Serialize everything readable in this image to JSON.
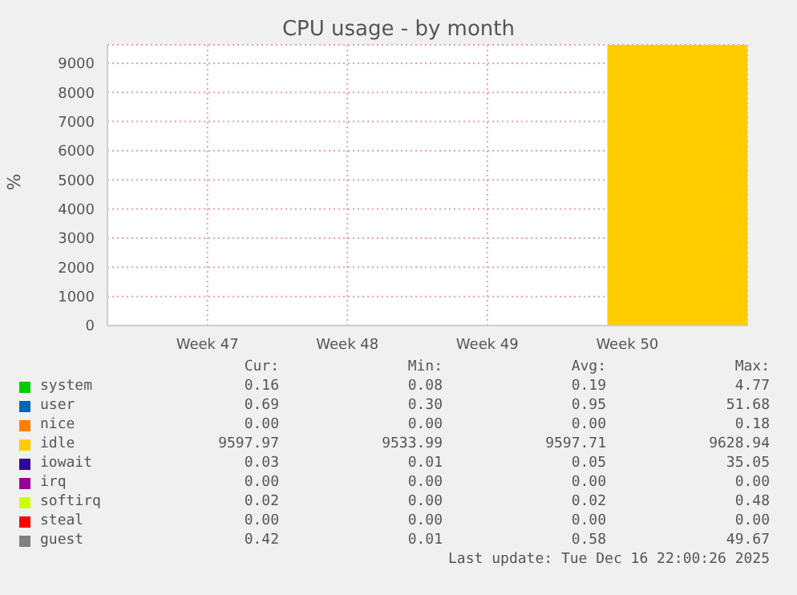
{
  "chart_data": {
    "type": "area",
    "title": "CPU usage - by month",
    "ylabel": "%",
    "categories": [
      null,
      null,
      null,
      null,
      null,
      "Week 47",
      null,
      null,
      null,
      null,
      null,
      null,
      "Week 48",
      null,
      null,
      null,
      null,
      null,
      null,
      "Week 49",
      null,
      null,
      null,
      null,
      null,
      null,
      "Week 50",
      null,
      null,
      null,
      null,
      null,
      null
    ],
    "ylim": [
      0,
      9630
    ],
    "yticks": [
      0,
      1000,
      2000,
      3000,
      4000,
      5000,
      6000,
      7000,
      8000,
      9000
    ],
    "grid": true,
    "legend": "bottom",
    "series": [
      {
        "name": "system",
        "color": "#00cc00",
        "values": [
          null,
          null,
          null,
          null,
          null,
          null,
          null,
          null,
          null,
          null,
          null,
          null,
          null,
          null,
          null,
          null,
          null,
          null,
          null,
          null,
          null,
          null,
          null,
          null,
          null,
          null,
          null,
          null,
          null,
          null,
          null,
          null,
          null
        ]
      },
      {
        "name": "user",
        "color": "#0066b3",
        "values": [
          null,
          null,
          null,
          null,
          null,
          null,
          null,
          null,
          null,
          null,
          null,
          null,
          null,
          null,
          null,
          null,
          null,
          null,
          null,
          null,
          null,
          null,
          null,
          null,
          null,
          null,
          null,
          null,
          null,
          null,
          null,
          null,
          null
        ]
      },
      {
        "name": "nice",
        "color": "#ff8000",
        "values": [
          null,
          null,
          null,
          null,
          null,
          null,
          null,
          null,
          null,
          null,
          null,
          null,
          null,
          null,
          null,
          null,
          null,
          null,
          null,
          null,
          null,
          null,
          null,
          null,
          null,
          null,
          null,
          null,
          null,
          null,
          null,
          null,
          null
        ]
      },
      {
        "name": "idle",
        "color": "#ffcc00",
        "values": [
          null,
          null,
          null,
          null,
          null,
          null,
          null,
          null,
          null,
          null,
          null,
          null,
          null,
          null,
          null,
          null,
          null,
          null,
          null,
          null,
          null,
          null,
          null,
          null,
          null,
          9600,
          9600,
          9600,
          9600,
          9600,
          9600,
          9600,
          9600
        ]
      },
      {
        "name": "iowait",
        "color": "#330099",
        "values": [
          null,
          null,
          null,
          null,
          null,
          null,
          null,
          null,
          null,
          null,
          null,
          null,
          null,
          null,
          null,
          null,
          null,
          null,
          null,
          null,
          null,
          null,
          null,
          null,
          null,
          null,
          null,
          null,
          null,
          null,
          null,
          null,
          null
        ]
      },
      {
        "name": "irq",
        "color": "#990099",
        "values": [
          null,
          null,
          null,
          null,
          null,
          null,
          null,
          null,
          null,
          null,
          null,
          null,
          null,
          null,
          null,
          null,
          null,
          null,
          null,
          null,
          null,
          null,
          null,
          null,
          null,
          null,
          null,
          null,
          null,
          null,
          null,
          null,
          null
        ]
      },
      {
        "name": "softirq",
        "color": "#ccff00",
        "values": [
          null,
          null,
          null,
          null,
          null,
          null,
          null,
          null,
          null,
          null,
          null,
          null,
          null,
          null,
          null,
          null,
          null,
          null,
          null,
          null,
          null,
          null,
          null,
          null,
          null,
          null,
          null,
          null,
          null,
          null,
          null,
          null,
          null
        ]
      },
      {
        "name": "steal",
        "color": "#ff0000",
        "values": [
          null,
          null,
          null,
          null,
          null,
          null,
          null,
          null,
          null,
          null,
          null,
          null,
          null,
          null,
          null,
          null,
          null,
          null,
          null,
          null,
          null,
          null,
          null,
          null,
          null,
          null,
          null,
          null,
          null,
          null,
          null,
          null,
          null
        ]
      },
      {
        "name": "guest",
        "color": "#808080",
        "values": [
          null,
          null,
          null,
          null,
          null,
          null,
          null,
          null,
          null,
          null,
          null,
          null,
          null,
          null,
          null,
          null,
          null,
          null,
          null,
          null,
          null,
          null,
          null,
          null,
          null,
          null,
          null,
          null,
          null,
          null,
          null,
          null,
          null
        ]
      }
    ],
    "annotations": [
      "Cur:",
      "Min:",
      "Avg:",
      "Max:",
      "0.16",
      "0.08",
      "0.19",
      "4.77",
      "0.69",
      "0.30",
      "0.95",
      "51.68",
      "0.00",
      "0.00",
      "0.00",
      "0.18",
      "9597.97",
      "9533.99",
      "9597.71",
      "9628.94",
      "0.03",
      "0.01",
      "0.05",
      "35.05",
      "0.00",
      "0.00",
      "0.00",
      "0.00",
      "0.02",
      "0.00",
      "0.02",
      "0.48",
      "0.00",
      "0.00",
      "0.00",
      "0.00",
      "0.42",
      "0.01",
      "0.58",
      "49.67",
      "Last update: Tue Dec 16 22:00:26 2025"
    ]
  }
}
